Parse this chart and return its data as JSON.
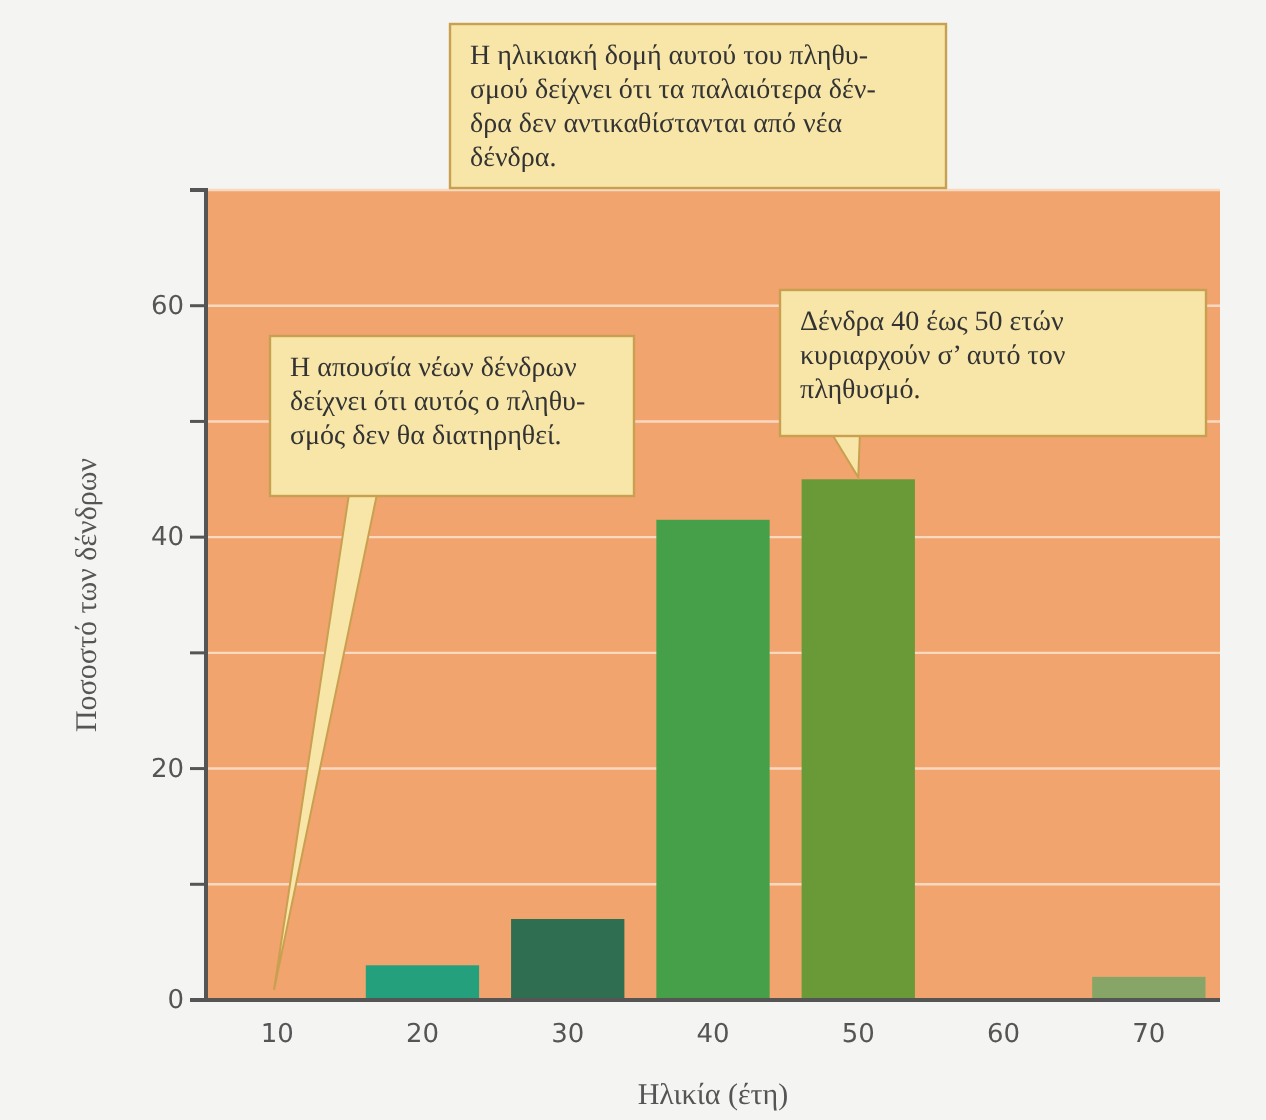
{
  "chart_data": {
    "type": "bar",
    "xlabel": "Ηλικία (έτη)",
    "ylabel": "Ποσοστό των δένδρων",
    "categories": [
      "10",
      "20",
      "30",
      "40",
      "50",
      "60",
      "70"
    ],
    "values": [
      0,
      3,
      7,
      41.5,
      45,
      0,
      2
    ],
    "colors": [
      "#2a9d7a",
      "#25a07c",
      "#2f6e50",
      "#46a04a",
      "#6a9a38",
      "#6a9a38",
      "#86a566"
    ],
    "ylim": [
      0,
      70
    ],
    "yticks": [
      0,
      {
        "value": 10,
        "label": null
      },
      20,
      {
        "value": 30,
        "label": null
      },
      40,
      {
        "value": 50,
        "label": null
      },
      60,
      {
        "value": 70,
        "label": null
      }
    ],
    "grid": "y",
    "annotations": [
      "Η ηλικιακή δομή αυτού του πληθυ-\nσμού δείχνει ότι τα παλαιότερα δέν-\nδρα δεν αντικαθίστανται από νέα\nδένδρα.",
      "Η απουσία νέων δένδρων\nδείχνει ότι αυτός ο πληθυ-\nσμός δεν θα διατηρηθεί.",
      {
        "text": "Δένδρα 40 έως 50 ετών\nκυριαρχούν σ’ αυτό τον\nπληθυσμό.",
        "x": "50",
        "y": 45
      }
    ]
  }
}
